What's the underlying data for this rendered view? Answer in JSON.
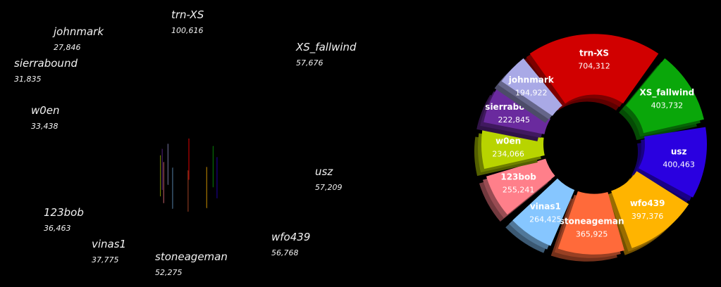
{
  "chart_data": [
    {
      "type": "pie",
      "variant": "3d-exploded",
      "labels": [
        "trn-XS",
        "XS_fallwind",
        "usz",
        "wfo439",
        "stoneageman",
        "vinas1",
        "123bob",
        "w0en",
        "sierrabound",
        "johnmark"
      ],
      "values": [
        100616,
        57676,
        57209,
        56768,
        52275,
        37775,
        36463,
        33438,
        31835,
        27846
      ],
      "value_text": [
        "100,616",
        "57,676",
        "57,209",
        "56,768",
        "52,275",
        "37,775",
        "36,463",
        "33,438",
        "31,835",
        "27,846"
      ]
    },
    {
      "type": "pie",
      "variant": "3d-donut",
      "labels": [
        "trn-XS",
        "XS_fallwind",
        "usz",
        "wfo439",
        "stoneageman",
        "vinas1",
        "123bob",
        "w0en",
        "sierrabound",
        "johnmark"
      ],
      "values": [
        704312,
        403732,
        400463,
        397376,
        365925,
        264425,
        255241,
        234066,
        222845,
        194922
      ],
      "value_text": [
        "704,312",
        "403,732",
        "400,463",
        "397,376",
        "365,925",
        "264,425",
        "255,241",
        "234,066",
        "222,845",
        "194,922"
      ]
    }
  ],
  "colors": [
    "#d10000",
    "#0aa70a",
    "#2a00e0",
    "#ffb400",
    "#ff6a3a",
    "#86c6ff",
    "#ff7f8a",
    "#b8d400",
    "#6a2a9e",
    "#a9a9e6"
  ]
}
